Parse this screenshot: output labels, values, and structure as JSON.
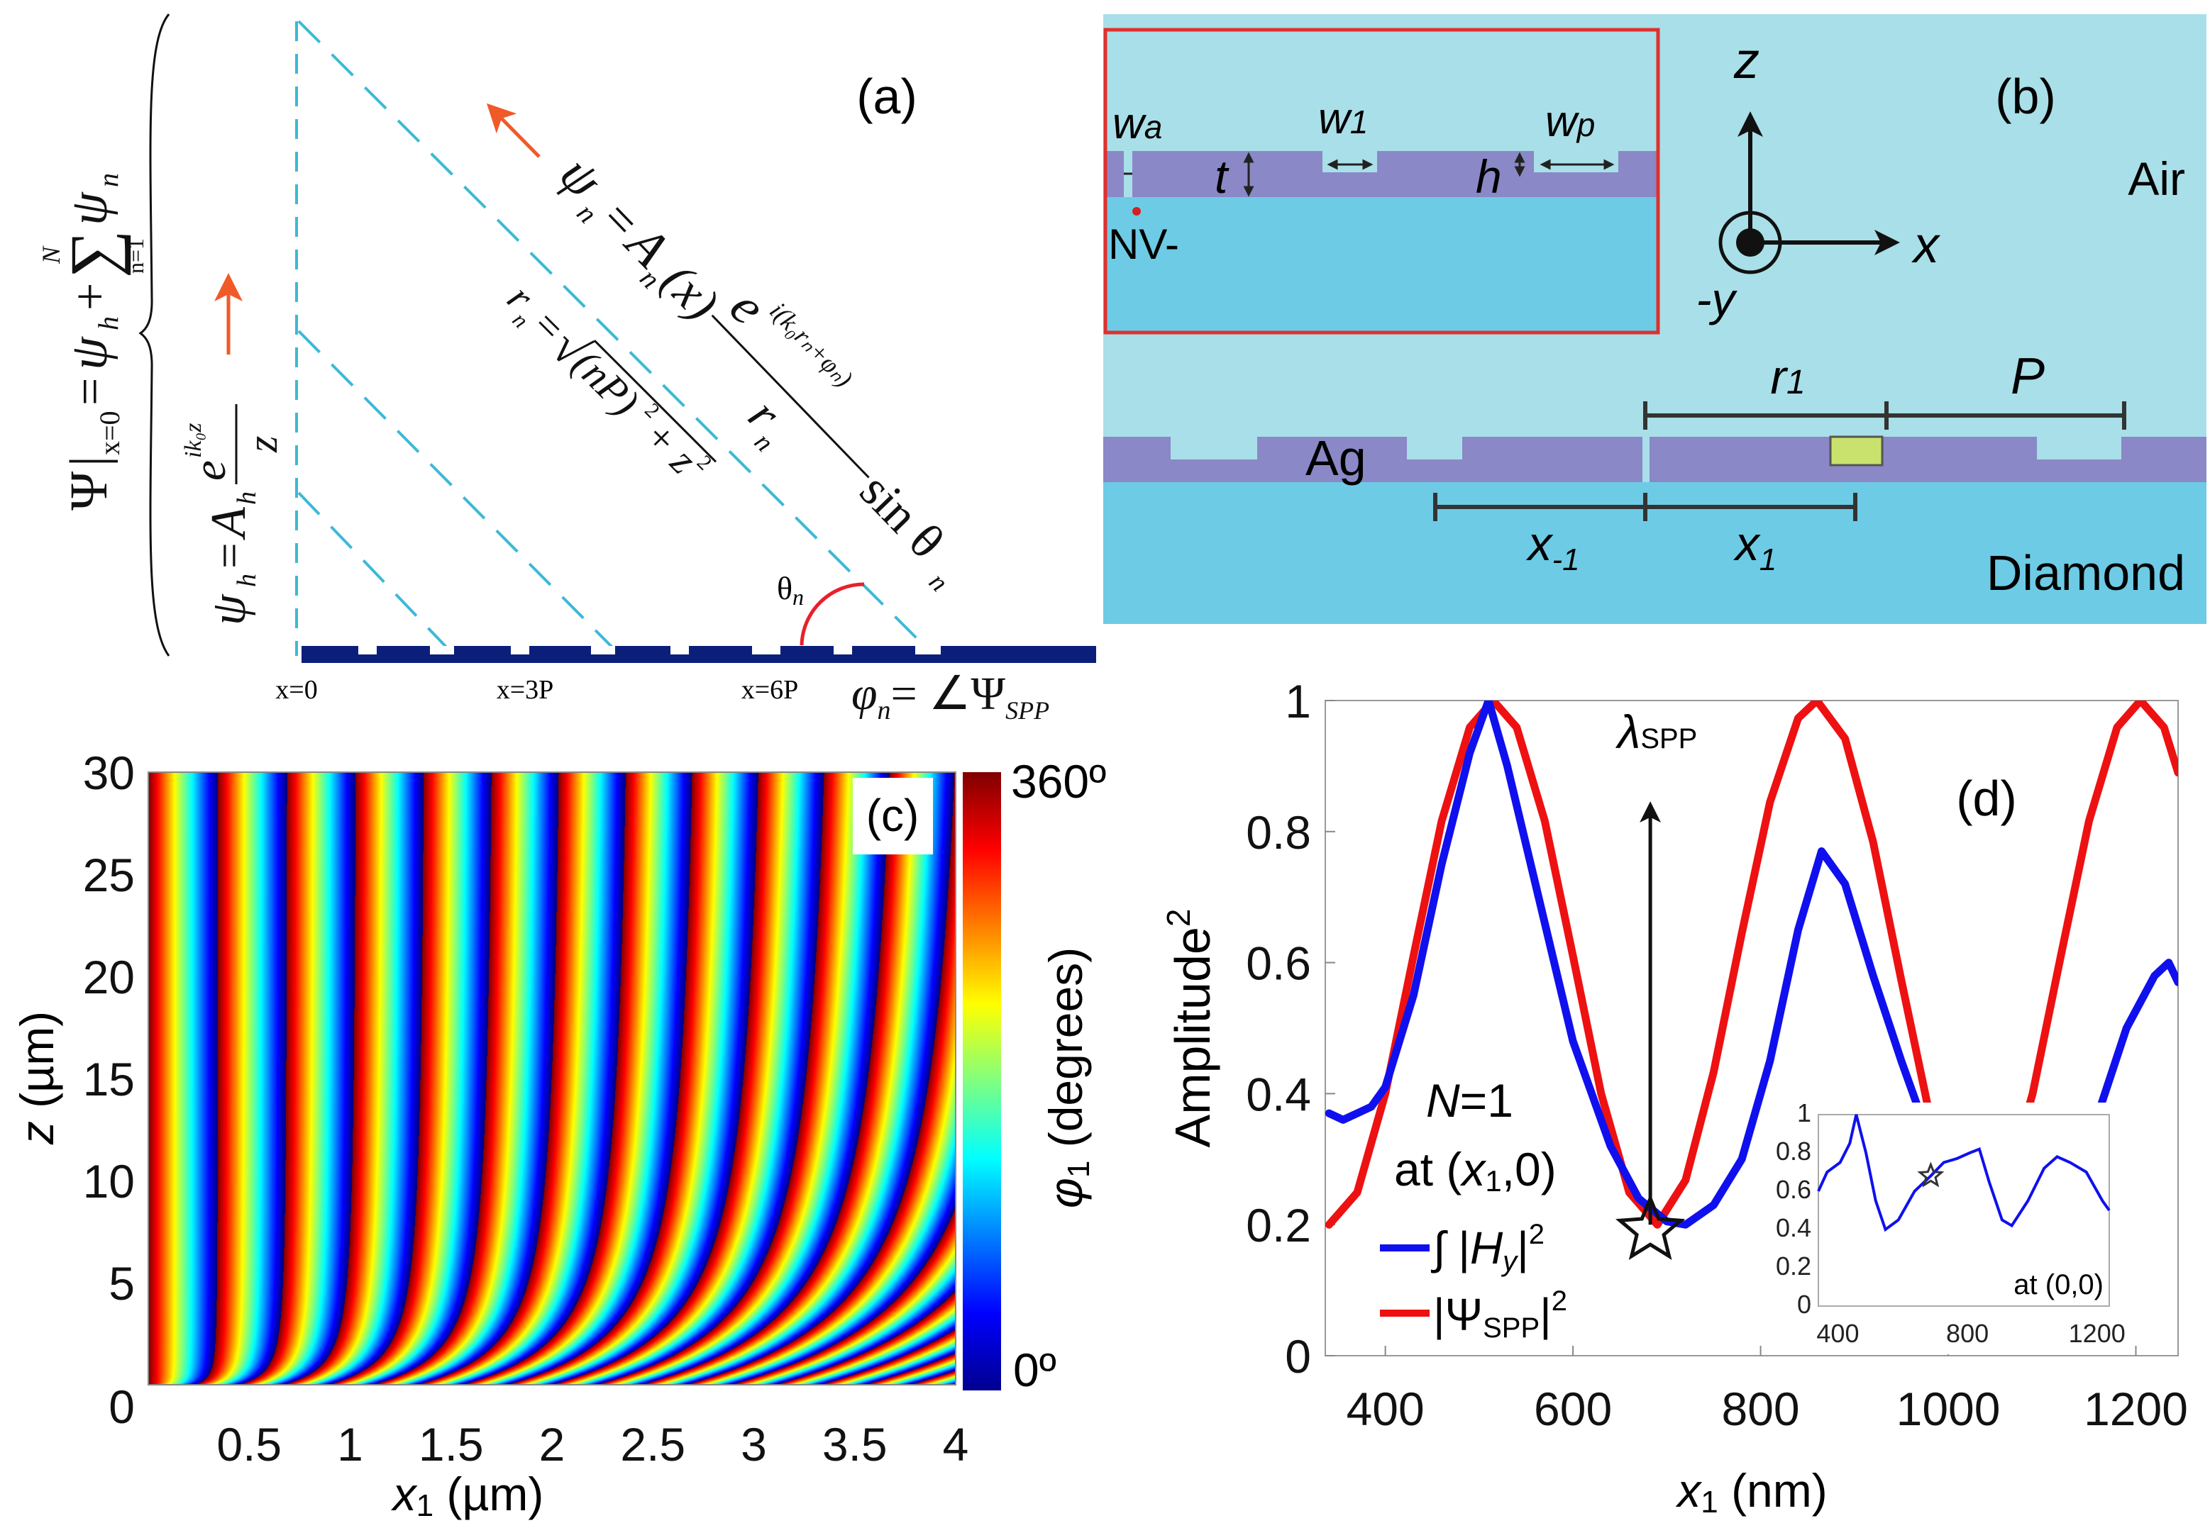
{
  "panel_a": {
    "label": "(a)",
    "eq_total": {
      "psi": "Ψ",
      "bar": "|",
      "sub": "x=0",
      "eq": "=",
      "psi_h": "ψ",
      "h": "h",
      "plus": "+",
      "sum": "∑",
      "sum_top": "N",
      "sum_bot": "n=1",
      "psi_n": "ψ",
      "n": "n"
    },
    "eq_h": {
      "psi": "ψ",
      "h": "h",
      "eq": "=",
      "A": "A",
      "Ah": "h",
      "e": "e",
      "exp": "ik₀z",
      "den": "z"
    },
    "eq_n": {
      "psi": "ψ",
      "n": "n",
      "eq": "=",
      "A": "A",
      "An": "n",
      "arg": "(x)",
      "e": "e",
      "exp": "i(k₀rₙ+φₙ)",
      "r": "r",
      "rn": "n",
      "sin": "sin θ",
      "sin_n": "n"
    },
    "eq_r": {
      "r": "r",
      "n": "n",
      "eq": "=",
      "root": "√",
      "body": "(nP)",
      "sq1": "2",
      "plus": "+ z",
      "sq2": "2"
    },
    "theta": {
      "t": "θ",
      "n": "n"
    },
    "x_labels": [
      "x=0",
      "x=3P",
      "x=6P"
    ],
    "phi_eq": {
      "phi": "φ",
      "n": "n",
      "rhs": "= ∠Ψ",
      "sub": "SPP"
    },
    "colors": {
      "dash": "#3cb9d6",
      "arrow": "#f05a28",
      "grating": "#0b1f7a",
      "arc": "#e8202a"
    }
  },
  "panel_b": {
    "label": "(b)",
    "inset_labels": {
      "wa": "w",
      "wa_sub": "a",
      "w1": "w",
      "w1_sub": "1",
      "wp": "w",
      "wp_sub": "p",
      "t": "t",
      "h": "h",
      "nv": "NV-"
    },
    "axes": {
      "z": "z",
      "x": "x",
      "y": "-y"
    },
    "regions": {
      "air": "Air",
      "ag": "Ag",
      "diamond": "Diamond"
    },
    "dims": {
      "r1": "r",
      "r1_sub": "1",
      "P": "P",
      "xm1": "x",
      "xm1_sub": "-1",
      "x1": "x",
      "x1_sub": "1"
    },
    "colors": {
      "air": "#a9dfe8",
      "diamond": "#6ecbe5",
      "ag": "#8a88c6",
      "frame": "#e0302e",
      "emitter": "#c9e26d",
      "nv": "#d42020"
    }
  },
  "chart_data": [
    {
      "id": "c",
      "type": "heatmap",
      "label": "(c)",
      "xlabel": "x",
      "xlabel_sub": "1",
      "xlabel_unit": "(µm)",
      "ylabel": "z",
      "ylabel_unit": "(µm)",
      "xlim": [
        0,
        4
      ],
      "ylim": [
        0,
        30
      ],
      "xticks": [
        "0.5",
        "1",
        "1.5",
        "2",
        "2.5",
        "3",
        "3.5",
        "4"
      ],
      "xtick_values": [
        0.5,
        1,
        1.5,
        2,
        2.5,
        3,
        3.5,
        4
      ],
      "yticks": [
        "0",
        "5",
        "10",
        "15",
        "20",
        "25",
        "30"
      ],
      "ytick_values": [
        0,
        5,
        10,
        15,
        20,
        25,
        30
      ],
      "colorbar": {
        "label": "φ",
        "label_sub": "1",
        "label_unit": "(degrees)",
        "min_label": "0º",
        "max_label": "360º",
        "range": [
          0,
          360
        ],
        "colormap": "jet"
      }
    },
    {
      "id": "d",
      "type": "line",
      "label": "(d)",
      "xlabel": "x",
      "xlabel_sub": "1",
      "xlabel_unit": "(nm)",
      "ylabel": "Amplitude",
      "ylabel_sup": "2",
      "xlim": [
        336,
        1245
      ],
      "ylim": [
        0,
        1
      ],
      "xticks": [
        "400",
        "600",
        "800",
        "1000",
        "1200"
      ],
      "xtick_values": [
        400,
        600,
        800,
        1000,
        1200
      ],
      "yticks": [
        "0",
        "0.2",
        "0.4",
        "0.6",
        "0.8",
        "1"
      ],
      "ytick_values": [
        0,
        0.2,
        0.4,
        0.6,
        0.8,
        1
      ],
      "annotation": {
        "lambda": "λ",
        "lambda_sub": "SPP",
        "arrow_x": 690,
        "arrow_from": 0.2,
        "arrow_to": 0.83,
        "star": [
          690,
          0.2
        ]
      },
      "legend": {
        "n_label": "N",
        "n_value": "=1",
        "at": "at (",
        "at_x": "x",
        "at_sub": "1",
        "at_end": ",0)",
        "placement": "bottom-left"
      },
      "series": [
        {
          "name": "∫|Hy|²",
          "legend_int": "∫ |",
          "legend_H": "H",
          "legend_Hsub": "y",
          "legend_end": "|",
          "legend_sup": "2",
          "color": "#1010ee",
          "points": [
            [
              340,
              0.37
            ],
            [
              355,
              0.36
            ],
            [
              370,
              0.37
            ],
            [
              385,
              0.38
            ],
            [
              400,
              0.41
            ],
            [
              430,
              0.55
            ],
            [
              460,
              0.75
            ],
            [
              490,
              0.92
            ],
            [
              510,
              1.0
            ],
            [
              530,
              0.9
            ],
            [
              560,
              0.72
            ],
            [
              600,
              0.48
            ],
            [
              640,
              0.32
            ],
            [
              670,
              0.24
            ],
            [
              700,
              0.205
            ],
            [
              720,
              0.2
            ],
            [
              750,
              0.23
            ],
            [
              780,
              0.3
            ],
            [
              810,
              0.45
            ],
            [
              840,
              0.65
            ],
            [
              865,
              0.77
            ],
            [
              890,
              0.72
            ],
            [
              920,
              0.58
            ],
            [
              950,
              0.45
            ],
            [
              980,
              0.33
            ],
            [
              1010,
              0.25
            ],
            [
              1050,
              0.2
            ],
            [
              1090,
              0.22
            ],
            [
              1130,
              0.3
            ],
            [
              1160,
              0.37
            ],
            [
              1190,
              0.5
            ],
            [
              1220,
              0.58
            ],
            [
              1235,
              0.6
            ],
            [
              1245,
              0.57
            ]
          ]
        },
        {
          "name": "|ΨSPP|²",
          "legend_pre": "|Ψ",
          "legend_sub": "SPP",
          "legend_end": "|",
          "legend_sup": "2",
          "color": "#ee1111",
          "points": [
            [
              340,
              0.2
            ],
            [
              370,
              0.249
            ],
            [
              400,
              0.4
            ],
            [
              430,
              0.61
            ],
            [
              460,
              0.816
            ],
            [
              490,
              0.959
            ],
            [
              515,
              1.0
            ],
            [
              540,
              0.959
            ],
            [
              570,
              0.816
            ],
            [
              600,
              0.61
            ],
            [
              630,
              0.4
            ],
            [
              660,
              0.249
            ],
            [
              690,
              0.2
            ],
            [
              720,
              0.268
            ],
            [
              750,
              0.433
            ],
            [
              780,
              0.645
            ],
            [
              810,
              0.845
            ],
            [
              840,
              0.973
            ],
            [
              860,
              1.0
            ],
            [
              890,
              0.942
            ],
            [
              920,
              0.784
            ],
            [
              950,
              0.573
            ],
            [
              980,
              0.369
            ],
            [
              1010,
              0.233
            ],
            [
              1035,
              0.2
            ],
            [
              1060,
              0.249
            ],
            [
              1090,
              0.4
            ],
            [
              1120,
              0.61
            ],
            [
              1150,
              0.816
            ],
            [
              1180,
              0.959
            ],
            [
              1205,
              1.0
            ],
            [
              1230,
              0.959
            ],
            [
              1245,
              0.89
            ]
          ]
        }
      ],
      "inset": {
        "label": "at (0,0)",
        "xlim": [
          353,
          1251
        ],
        "ylim": [
          0,
          1
        ],
        "xticks": [
          "400",
          "800",
          "1200"
        ],
        "xtick_values": [
          400,
          800,
          1200
        ],
        "yticks": [
          "0",
          "0.2",
          "0.4",
          "0.6",
          "0.8",
          "1"
        ],
        "ytick_values": [
          0,
          0.2,
          0.4,
          0.6,
          0.8,
          1
        ],
        "star": [
          700,
          0.68
        ],
        "series": [
          {
            "name": "∫|Hy|² at (0,0)",
            "color": "#1010ee",
            "points": [
              [
                353,
                0.6
              ],
              [
                380,
                0.7
              ],
              [
                420,
                0.75
              ],
              [
                450,
                0.85
              ],
              [
                470,
                1.0
              ],
              [
                500,
                0.8
              ],
              [
                530,
                0.55
              ],
              [
                560,
                0.4
              ],
              [
                600,
                0.45
              ],
              [
                650,
                0.6
              ],
              [
                700,
                0.68
              ],
              [
                740,
                0.75
              ],
              [
                780,
                0.77
              ],
              [
                820,
                0.8
              ],
              [
                850,
                0.82
              ],
              [
                880,
                0.65
              ],
              [
                920,
                0.45
              ],
              [
                950,
                0.42
              ],
              [
                1000,
                0.55
              ],
              [
                1050,
                0.72
              ],
              [
                1090,
                0.78
              ],
              [
                1130,
                0.75
              ],
              [
                1180,
                0.7
              ],
              [
                1230,
                0.55
              ],
              [
                1251,
                0.5
              ]
            ]
          }
        ]
      }
    }
  ]
}
